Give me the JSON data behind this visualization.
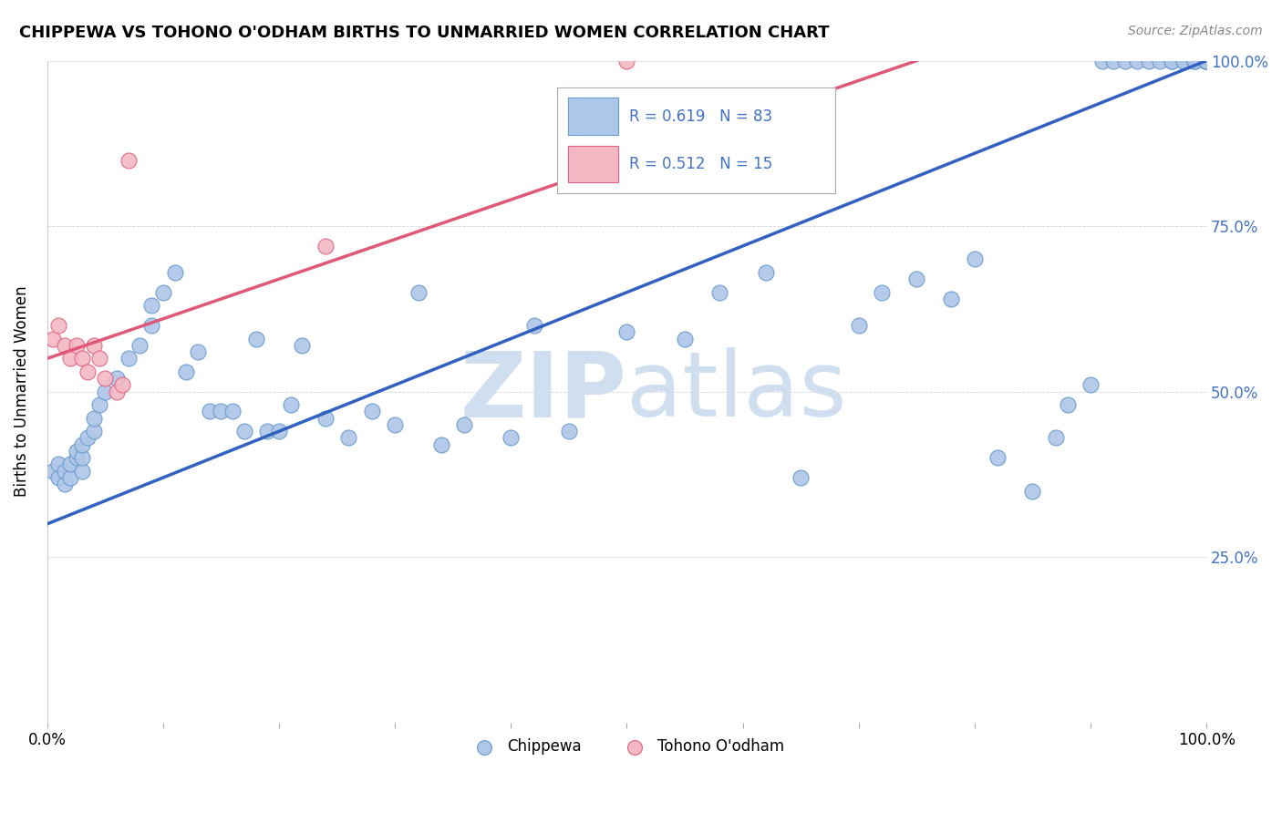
{
  "title": "CHIPPEWA VS TOHONO O'ODHAM BIRTHS TO UNMARRIED WOMEN CORRELATION CHART",
  "source": "Source: ZipAtlas.com",
  "ylabel": "Births to Unmarried Women",
  "chippewa_color": "#aec6e8",
  "tohono_color": "#f4b8c4",
  "chippewa_edge": "#6699cc",
  "tohono_edge": "#e06080",
  "line_blue": "#3060c0",
  "line_pink": "#e05878",
  "watermark_color": "#d0dff0",
  "chippewa_label": "Chippewa",
  "tohono_label": "Tohono O'odham",
  "chippewa_x": [
    0.005,
    0.01,
    0.01,
    0.015,
    0.015,
    0.02,
    0.02,
    0.025,
    0.025,
    0.03,
    0.03,
    0.03,
    0.035,
    0.04,
    0.04,
    0.045,
    0.05,
    0.06,
    0.07,
    0.08,
    0.09,
    0.09,
    0.1,
    0.11,
    0.12,
    0.13,
    0.14,
    0.15,
    0.16,
    0.17,
    0.18,
    0.19,
    0.2,
    0.21,
    0.22,
    0.24,
    0.26,
    0.28,
    0.3,
    0.32,
    0.34,
    0.36,
    0.4,
    0.42,
    0.45,
    0.5,
    0.55,
    0.58,
    0.62,
    0.65,
    0.7,
    0.72,
    0.75,
    0.78,
    0.8,
    0.82,
    0.85,
    0.87,
    0.88,
    0.9,
    0.91,
    0.92,
    0.93,
    0.94,
    0.95,
    0.96,
    0.97,
    0.97,
    0.98,
    0.98,
    0.99,
    0.99,
    0.99,
    1.0,
    1.0,
    1.0,
    1.0,
    1.0,
    1.0,
    1.0,
    1.0,
    1.0,
    1.0
  ],
  "chippewa_y": [
    0.38,
    0.37,
    0.39,
    0.36,
    0.38,
    0.37,
    0.39,
    0.4,
    0.41,
    0.38,
    0.4,
    0.42,
    0.43,
    0.44,
    0.46,
    0.48,
    0.5,
    0.52,
    0.55,
    0.57,
    0.6,
    0.63,
    0.65,
    0.68,
    0.53,
    0.56,
    0.47,
    0.47,
    0.47,
    0.44,
    0.58,
    0.44,
    0.44,
    0.48,
    0.57,
    0.46,
    0.43,
    0.47,
    0.45,
    0.65,
    0.42,
    0.45,
    0.43,
    0.6,
    0.44,
    0.59,
    0.58,
    0.65,
    0.68,
    0.37,
    0.6,
    0.65,
    0.67,
    0.64,
    0.7,
    0.4,
    0.35,
    0.43,
    0.48,
    0.51,
    1.0,
    1.0,
    1.0,
    1.0,
    1.0,
    1.0,
    1.0,
    1.0,
    1.0,
    1.0,
    1.0,
    1.0,
    1.0,
    1.0,
    1.0,
    1.0,
    1.0,
    1.0,
    1.0,
    1.0,
    1.0,
    1.0,
    1.0
  ],
  "tohono_x": [
    0.005,
    0.01,
    0.015,
    0.02,
    0.025,
    0.03,
    0.035,
    0.04,
    0.045,
    0.05,
    0.06,
    0.065,
    0.07,
    0.24,
    0.5
  ],
  "tohono_y": [
    0.58,
    0.6,
    0.57,
    0.55,
    0.57,
    0.55,
    0.53,
    0.57,
    0.55,
    0.52,
    0.5,
    0.51,
    0.85,
    0.72,
    1.0
  ],
  "blue_line": [
    0.0,
    0.3,
    1.0,
    1.0
  ],
  "pink_line": [
    0.0,
    0.55,
    0.75,
    1.0
  ],
  "xlim": [
    0.0,
    1.0
  ],
  "ylim": [
    0.0,
    1.0
  ]
}
